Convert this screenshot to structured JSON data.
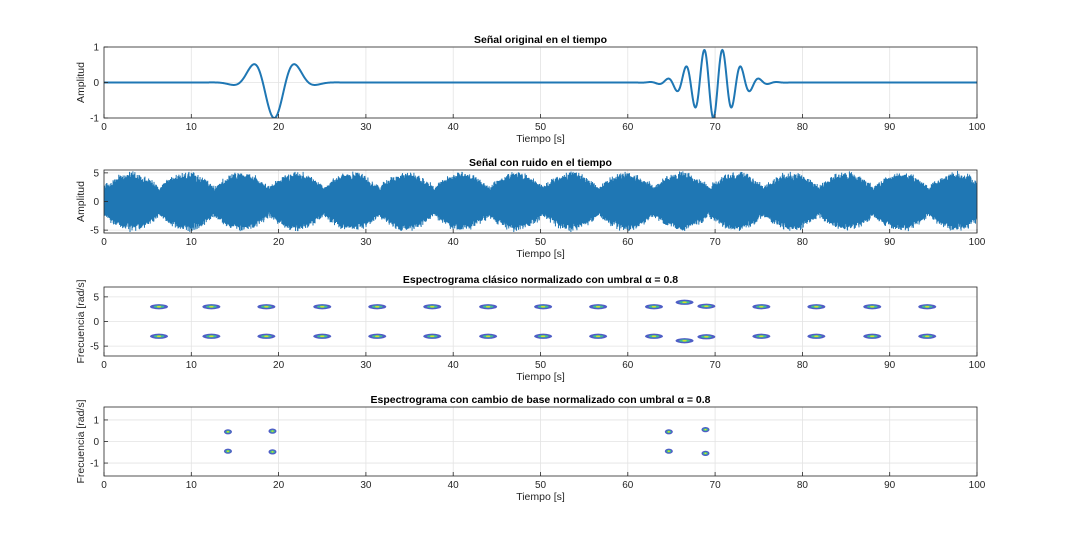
{
  "figure": {
    "background": "#ffffff",
    "line_color": "#1f77b4"
  },
  "chart_data": [
    {
      "type": "line",
      "title": "Señal original en el tiempo",
      "xlabel": "Tiempo [s]",
      "ylabel": "Amplitud",
      "xlim": [
        0,
        100
      ],
      "ylim": [
        -1,
        1
      ],
      "xticks": [
        "0",
        "10",
        "20",
        "30",
        "40",
        "50",
        "60",
        "70",
        "80",
        "90",
        "100"
      ],
      "yticks": [
        "-1",
        "0",
        "1"
      ],
      "grid": true,
      "components": [
        {
          "kind": "chirp_pulse",
          "center": 19.5,
          "width": 3.0,
          "amplitude": 1.0,
          "frequency_rad_s": 1.2
        },
        {
          "kind": "wave_packet",
          "center": 69.8,
          "width": 3.5,
          "amplitude": 1.0,
          "frequency_rad_s": 3.0
        }
      ]
    },
    {
      "type": "line",
      "title": "Señal con ruido en el tiempo",
      "xlabel": "Tiempo [s]",
      "ylabel": "Amplitud",
      "xlim": [
        0,
        100
      ],
      "ylim": [
        -5.5,
        5.5
      ],
      "xticks": [
        "0",
        "10",
        "20",
        "30",
        "40",
        "50",
        "60",
        "70",
        "80",
        "90",
        "100"
      ],
      "yticks": [
        "-5",
        "0",
        "5"
      ],
      "grid": true,
      "noise_envelope_period_s": 6.3,
      "noise_amplitude_range": [
        2.5,
        5.0
      ]
    },
    {
      "type": "scatter",
      "title": "Espectrograma clásico normalizado con umbral α = 0.8",
      "xlabel": "Tiempo [s]",
      "ylabel": "Frecuencia [rad/s]",
      "xlim": [
        0,
        100
      ],
      "ylim": [
        -7,
        7
      ],
      "xticks": [
        "0",
        "10",
        "20",
        "30",
        "40",
        "50",
        "60",
        "70",
        "80",
        "90",
        "100"
      ],
      "yticks": [
        "-5",
        "0",
        "5"
      ],
      "grid": true,
      "points": [
        {
          "x": 6.3,
          "y": 3.0
        },
        {
          "x": 6.3,
          "y": -3.0
        },
        {
          "x": 12.3,
          "y": 3.0
        },
        {
          "x": 12.3,
          "y": -3.0
        },
        {
          "x": 18.6,
          "y": 3.0
        },
        {
          "x": 18.6,
          "y": -3.0
        },
        {
          "x": 25.0,
          "y": 3.0
        },
        {
          "x": 25.0,
          "y": -3.0
        },
        {
          "x": 31.3,
          "y": 3.0
        },
        {
          "x": 31.3,
          "y": -3.0
        },
        {
          "x": 37.6,
          "y": 3.0
        },
        {
          "x": 37.6,
          "y": -3.0
        },
        {
          "x": 44.0,
          "y": 3.0
        },
        {
          "x": 44.0,
          "y": -3.0
        },
        {
          "x": 50.3,
          "y": 3.0
        },
        {
          "x": 50.3,
          "y": -3.0
        },
        {
          "x": 56.6,
          "y": 3.0
        },
        {
          "x": 56.6,
          "y": -3.0
        },
        {
          "x": 63.0,
          "y": 3.0
        },
        {
          "x": 63.0,
          "y": -3.0
        },
        {
          "x": 66.5,
          "y": 3.9
        },
        {
          "x": 66.5,
          "y": -3.9
        },
        {
          "x": 69.0,
          "y": 3.1
        },
        {
          "x": 69.0,
          "y": -3.1
        },
        {
          "x": 75.3,
          "y": 3.0
        },
        {
          "x": 75.3,
          "y": -3.0
        },
        {
          "x": 81.6,
          "y": 3.0
        },
        {
          "x": 81.6,
          "y": -3.0
        },
        {
          "x": 88.0,
          "y": 3.0
        },
        {
          "x": 88.0,
          "y": -3.0
        },
        {
          "x": 94.3,
          "y": 3.0
        },
        {
          "x": 94.3,
          "y": -3.0
        }
      ]
    },
    {
      "type": "scatter",
      "title": "Espectrograma con cambio de base normalizado con umbral α = 0.8",
      "xlabel": "Tiempo [s]",
      "ylabel": "Frecuencia [rad/s]",
      "xlim": [
        0,
        100
      ],
      "ylim": [
        -1.6,
        1.6
      ],
      "xticks": [
        "0",
        "10",
        "20",
        "30",
        "40",
        "50",
        "60",
        "70",
        "80",
        "90",
        "100"
      ],
      "yticks": [
        "-1",
        "0",
        "1"
      ],
      "grid": true,
      "points": [
        {
          "x": 14.2,
          "y": 0.45
        },
        {
          "x": 14.2,
          "y": -0.45
        },
        {
          "x": 19.3,
          "y": 0.48
        },
        {
          "x": 19.3,
          "y": -0.48
        },
        {
          "x": 64.7,
          "y": 0.45
        },
        {
          "x": 64.7,
          "y": -0.45
        },
        {
          "x": 68.9,
          "y": 0.55
        },
        {
          "x": 68.9,
          "y": -0.55
        }
      ]
    }
  ]
}
